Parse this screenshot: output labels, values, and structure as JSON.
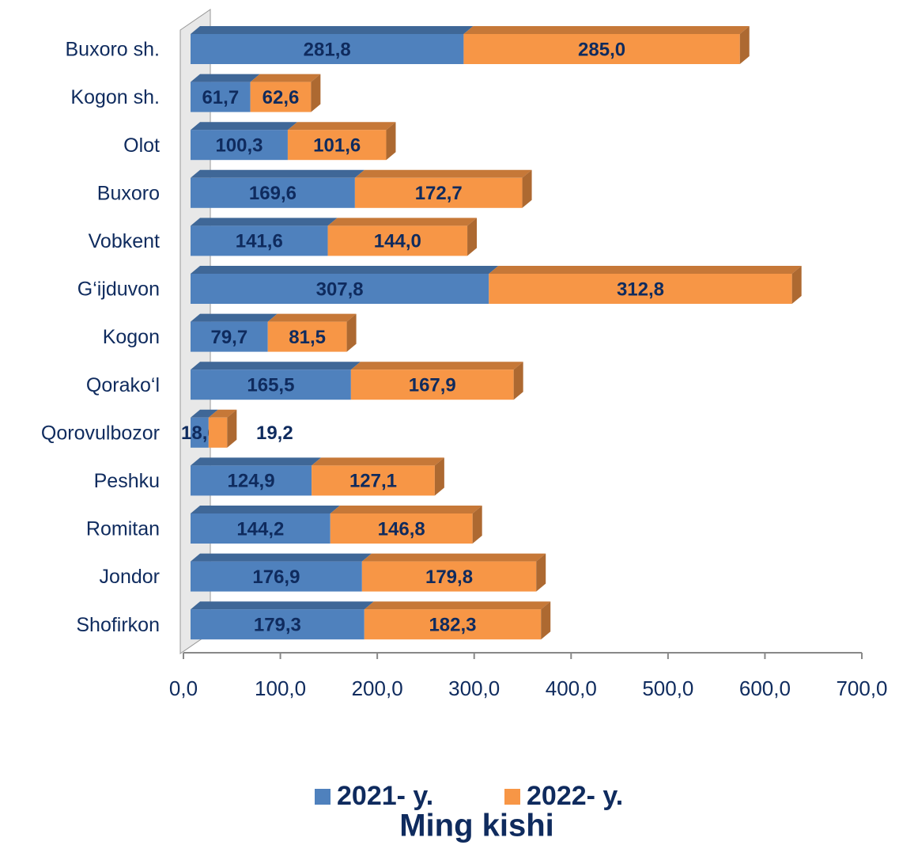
{
  "chart_data": {
    "type": "bar",
    "orientation": "horizontal",
    "stacked": true,
    "categories": [
      "Buxoro sh.",
      "Kogon sh.",
      "Olot",
      "Buxoro",
      "Vobkent",
      "G‘ijduvon",
      "Kogon",
      "Qorako‘l",
      "Qorovulbozor",
      "Peshku",
      "Romitan",
      "Jondor",
      "Shofirkon"
    ],
    "series": [
      {
        "name": "2021- y.",
        "color": "#4f81bd",
        "values": [
          281.8,
          61.7,
          100.3,
          169.6,
          141.6,
          307.8,
          79.7,
          165.5,
          18.6,
          124.9,
          144.2,
          176.9,
          179.3
        ],
        "value_labels": [
          "281,8",
          "61,7",
          "100,3",
          "169,6",
          "141,6",
          "307,8",
          "79,7",
          "165,5",
          "18,6",
          "124,9",
          "144,2",
          "176,9",
          "179,3"
        ]
      },
      {
        "name": "2022- y.",
        "color": "#f79646",
        "values": [
          285.0,
          62.6,
          101.6,
          172.7,
          144.0,
          312.8,
          81.5,
          167.9,
          19.2,
          127.1,
          146.8,
          179.8,
          182.3
        ],
        "value_labels": [
          "285,0",
          "62,6",
          "101,6",
          "172,7",
          "144,0",
          "312,8",
          "81,5",
          "167,9",
          "19,2",
          "127,1",
          "146,8",
          "179,8",
          "182,3"
        ]
      }
    ],
    "xlim": [
      0,
      700
    ],
    "xticks": [
      {
        "value": 0,
        "label": "0,0"
      },
      {
        "value": 100,
        "label": "100,0"
      },
      {
        "value": 200,
        "label": "200,0"
      },
      {
        "value": 300,
        "label": "300,0"
      },
      {
        "value": 400,
        "label": "400,0"
      },
      {
        "value": 500,
        "label": "500,0"
      },
      {
        "value": 600,
        "label": "600,0"
      },
      {
        "value": 700,
        "label": "700,0"
      }
    ],
    "legend": "bottom",
    "title": "Ming kishi"
  }
}
